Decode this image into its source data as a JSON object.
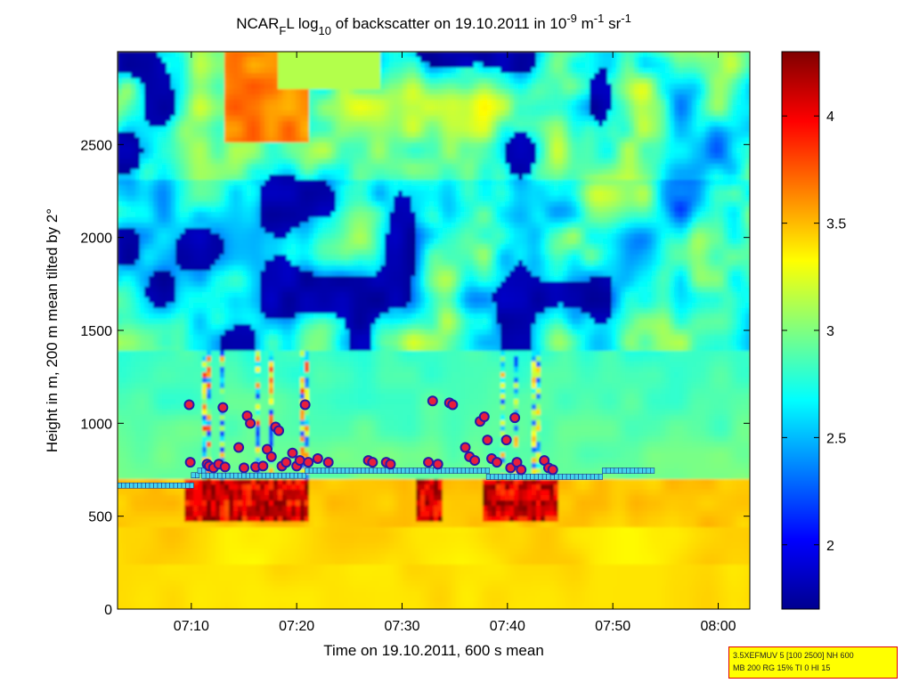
{
  "chart_data": {
    "type": "heatmap",
    "title": {
      "prefix": "NCAR",
      "sub1": "F",
      "mid1": "L log",
      "sub2": "10",
      "mid2": " of backscatter on 19.10.2011 in 10",
      "sup1": "-9",
      "mid3": " m",
      "sup2": "-1",
      "mid4": " sr",
      "sup3": "-1"
    },
    "xlabel": "Time on 19.10.2011, 600 s mean",
    "ylabel": "Height in m, 200 m mean tilted by 2°",
    "x_tick_labels": [
      "07:10",
      "07:20",
      "07:30",
      "07:40",
      "07:50",
      "08:00"
    ],
    "x_tick_minutes": [
      430,
      440,
      450,
      460,
      470,
      480
    ],
    "xlim_minutes": [
      423,
      483
    ],
    "y_ticks": [
      0,
      500,
      1000,
      1500,
      2000,
      2500
    ],
    "ylim": [
      0,
      3000
    ],
    "colorbar": {
      "ticks": [
        2,
        2.5,
        3,
        3.5,
        4
      ],
      "range": [
        1.7,
        4.3
      ],
      "colormap": "jet"
    },
    "cloud_base_points": [
      {
        "t": 429.8,
        "h": 1100
      },
      {
        "t": 429.9,
        "h": 790
      },
      {
        "t": 431.5,
        "h": 780
      },
      {
        "t": 431.7,
        "h": 770
      },
      {
        "t": 432.1,
        "h": 760
      },
      {
        "t": 432.6,
        "h": 780
      },
      {
        "t": 433.0,
        "h": 1085
      },
      {
        "t": 433.2,
        "h": 765
      },
      {
        "t": 434.5,
        "h": 870
      },
      {
        "t": 435.0,
        "h": 760
      },
      {
        "t": 435.3,
        "h": 1040
      },
      {
        "t": 435.6,
        "h": 1000
      },
      {
        "t": 436.1,
        "h": 765
      },
      {
        "t": 436.8,
        "h": 770
      },
      {
        "t": 437.2,
        "h": 860
      },
      {
        "t": 437.6,
        "h": 820
      },
      {
        "t": 438.0,
        "h": 980
      },
      {
        "t": 438.3,
        "h": 960
      },
      {
        "t": 438.6,
        "h": 770
      },
      {
        "t": 439.0,
        "h": 790
      },
      {
        "t": 439.6,
        "h": 840
      },
      {
        "t": 440.0,
        "h": 770
      },
      {
        "t": 440.3,
        "h": 800
      },
      {
        "t": 440.8,
        "h": 1100
      },
      {
        "t": 441.1,
        "h": 790
      },
      {
        "t": 442.0,
        "h": 810
      },
      {
        "t": 443.0,
        "h": 790
      },
      {
        "t": 446.8,
        "h": 800
      },
      {
        "t": 447.2,
        "h": 790
      },
      {
        "t": 448.5,
        "h": 790
      },
      {
        "t": 448.9,
        "h": 780
      },
      {
        "t": 452.5,
        "h": 790
      },
      {
        "t": 452.9,
        "h": 1120
      },
      {
        "t": 453.4,
        "h": 780
      },
      {
        "t": 454.5,
        "h": 1110
      },
      {
        "t": 454.8,
        "h": 1100
      },
      {
        "t": 456.0,
        "h": 870
      },
      {
        "t": 456.4,
        "h": 820
      },
      {
        "t": 456.9,
        "h": 800
      },
      {
        "t": 457.4,
        "h": 1010
      },
      {
        "t": 457.8,
        "h": 1035
      },
      {
        "t": 458.1,
        "h": 910
      },
      {
        "t": 458.5,
        "h": 810
      },
      {
        "t": 459.0,
        "h": 790
      },
      {
        "t": 459.9,
        "h": 910
      },
      {
        "t": 460.3,
        "h": 760
      },
      {
        "t": 460.7,
        "h": 1030
      },
      {
        "t": 460.9,
        "h": 790
      },
      {
        "t": 461.3,
        "h": 750
      },
      {
        "t": 463.5,
        "h": 800
      },
      {
        "t": 463.9,
        "h": 760
      },
      {
        "t": 464.3,
        "h": 750
      }
    ],
    "boundary_layer_segments": [
      {
        "t0": 423.0,
        "t1": 430.0,
        "h": 665
      },
      {
        "t0": 430.0,
        "t1": 430.6,
        "h": 720
      },
      {
        "t0": 430.6,
        "t1": 431.0,
        "h": 745
      },
      {
        "t0": 431.0,
        "t1": 440.8,
        "h": 718
      },
      {
        "t0": 440.8,
        "t1": 458.0,
        "h": 745
      },
      {
        "t0": 458.0,
        "t1": 469.0,
        "h": 712
      },
      {
        "t0": 469.0,
        "t1": 473.7,
        "h": 745
      }
    ]
  },
  "info_box": {
    "line1": "3.5XEFMUV 5 [100 2500] NH 600",
    "line2": "MB 200 RG 15% TI 0 HI 15"
  },
  "colors": {
    "point_fill": "#e81e3c",
    "point_stroke": "#2a1aa8",
    "layer_fill": "#44d4ee",
    "layer_stroke": "#1a3a8a",
    "info_bg": "#ffff00",
    "info_border": "#e00000"
  }
}
